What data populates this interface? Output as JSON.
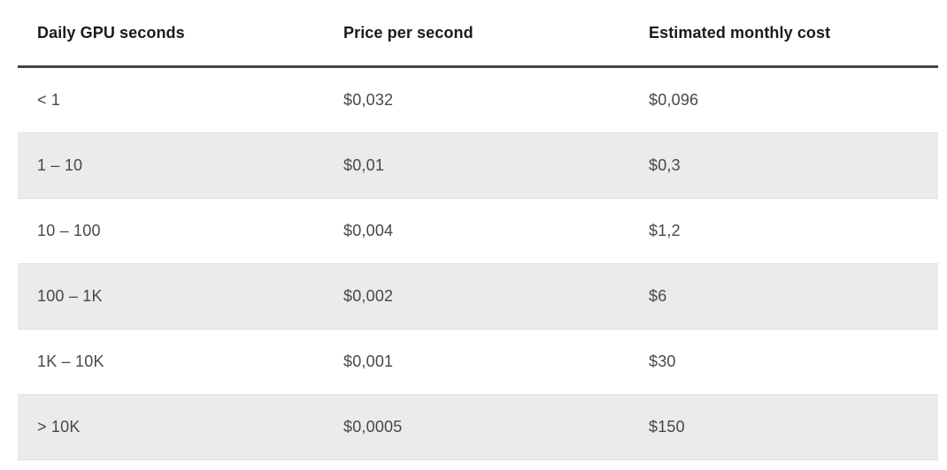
{
  "chart_data": {
    "type": "table",
    "columns": [
      "Daily GPU seconds",
      "Price per second",
      "Estimated monthly cost"
    ],
    "rows": [
      [
        "< 1",
        "$0,032",
        "$0,096"
      ],
      [
        "1 – 10",
        "$0,01",
        "$0,3"
      ],
      [
        "10 – 100",
        "$0,004",
        "$1,2"
      ],
      [
        "100 – 1K",
        "$0,002",
        "$6"
      ],
      [
        "1K – 10K",
        "$0,001",
        "$30"
      ],
      [
        "> 10K",
        "$0,0005",
        "$150"
      ]
    ],
    "layout": {
      "striped": true,
      "stripe_rows": "even",
      "header_rule": true
    }
  },
  "colors": {
    "stripe_bg": "#ebebeb",
    "stripe_border": "#e0e0e0",
    "header_rule": "#454545",
    "header_text": "#1b1b1b",
    "cell_text": "#484848",
    "page_bg": "#ffffff"
  }
}
